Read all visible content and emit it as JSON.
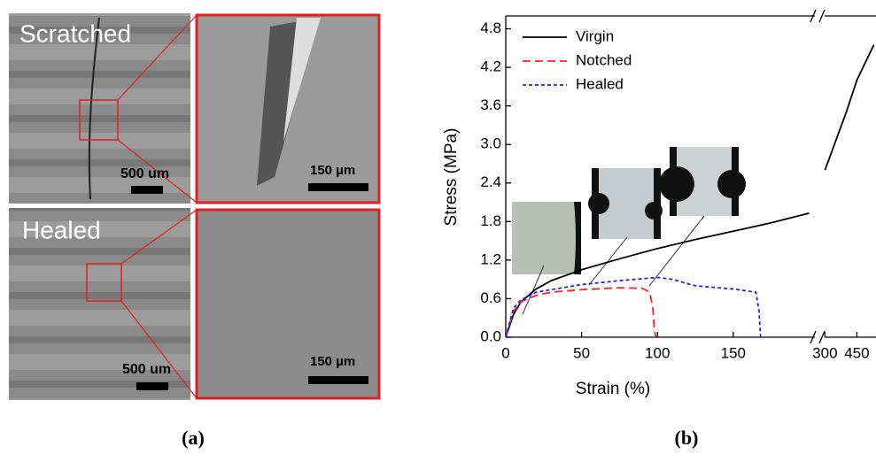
{
  "panel_a": {
    "caption": "(a)",
    "scratched": {
      "title": "Scratched",
      "scale_low": "500 um",
      "scale_high": "150 µm"
    },
    "healed": {
      "title": "Healed",
      "scale_low": "500 um",
      "scale_high": "150 µm"
    }
  },
  "chart_data": {
    "type": "line",
    "caption": "(b)",
    "x_label": "Strain (%)",
    "y_label": "Stress (MPa)",
    "xlim": [
      0,
      205
    ],
    "x2lim": [
      290,
      540
    ],
    "xticks": [
      0,
      50,
      100,
      150
    ],
    "x2ticks": [
      300,
      450
    ],
    "ylim": [
      0,
      5.0
    ],
    "yticks": [
      {
        "value": 0,
        "label": "0.0"
      },
      0.6,
      1.2,
      1.8,
      2.4,
      {
        "value": 3,
        "label": "3.0"
      },
      3.6,
      4.2,
      4.8
    ],
    "legend": "top-left",
    "series": [
      {
        "name": "Virgin",
        "color": "#000000",
        "dash": "solid",
        "x": [
          0,
          5,
          10,
          20,
          30,
          50,
          75,
          100,
          125,
          150,
          175,
          200,
          300,
          350,
          400,
          450,
          530
        ],
        "values": [
          0,
          0.35,
          0.55,
          0.75,
          0.88,
          1.05,
          1.22,
          1.38,
          1.52,
          1.65,
          1.78,
          1.93,
          2.6,
          3.05,
          3.5,
          4.0,
          4.55
        ]
      },
      {
        "name": "Notched",
        "color": "#ff2020",
        "dash": "dashed",
        "x": [
          0,
          5,
          10,
          20,
          30,
          50,
          75,
          90,
          95,
          97,
          98,
          99
        ],
        "values": [
          0,
          0.4,
          0.55,
          0.65,
          0.7,
          0.74,
          0.77,
          0.76,
          0.7,
          0.45,
          0.1,
          0
        ]
      },
      {
        "name": "Healed",
        "color": "#2020ff",
        "dash": "dotted",
        "x": [
          0,
          5,
          10,
          20,
          50,
          75,
          100,
          110,
          125,
          150,
          165,
          167,
          168
        ],
        "values": [
          0,
          0.45,
          0.58,
          0.7,
          0.82,
          0.88,
          0.93,
          0.9,
          0.8,
          0.75,
          0.7,
          0.4,
          0
        ]
      }
    ]
  }
}
